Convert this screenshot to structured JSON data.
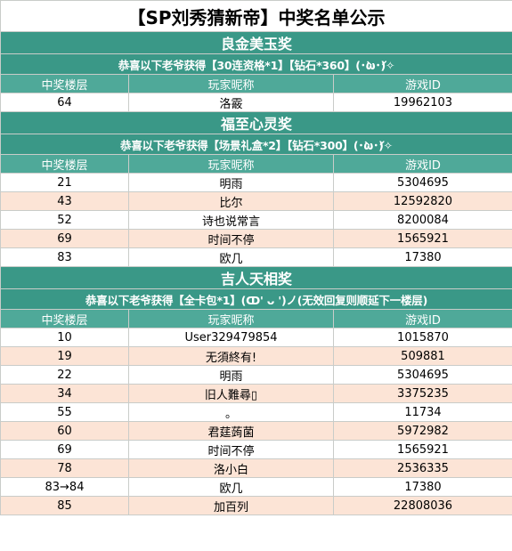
{
  "title": "【SP刘秀猜新帝】中奖名单公示",
  "sections": [
    {
      "name": "良金美玉奖",
      "subtitle": "恭喜以下老爷获得【30连资格*1】【钻石*360】(･̀ω･́)✧",
      "headers": [
        "中奖楼层",
        "玩家昵称",
        "游戏ID"
      ],
      "rows": [
        [
          "64",
          "洛霰",
          "19962103"
        ]
      ]
    },
    {
      "name": "福至心灵奖",
      "subtitle": "恭喜以下老爷获得【场景礼盒*2】【钻石*300】(･̀ω･́)✧",
      "headers": [
        "中奖楼层",
        "玩家昵称",
        "游戏ID"
      ],
      "rows": [
        [
          "21",
          "明雨",
          "5304695"
        ],
        [
          "43",
          "比尔",
          "12592820"
        ],
        [
          "52",
          "诗也说常言",
          "8200084"
        ],
        [
          "69",
          "时间不停",
          "1565921"
        ],
        [
          "83",
          "欧几",
          "17380"
        ]
      ]
    },
    {
      "name": "吉人天相奖",
      "subtitle": "恭喜以下老爷获得【全卡包*1】(ↀ' ᴗ ')ノ(无效回复则顺延下一楼层)",
      "headers": [
        "中奖楼层",
        "玩家昵称",
        "游戏ID"
      ],
      "rows": [
        [
          "10",
          "User329479854",
          "1015870"
        ],
        [
          "19",
          "无須終有!",
          "509881"
        ],
        [
          "22",
          "明雨",
          "5304695"
        ],
        [
          "34",
          "旧人難尋▯",
          "3375235"
        ],
        [
          "55",
          "。",
          "11734"
        ],
        [
          "60",
          "君莛蒟菌",
          "5972982"
        ],
        [
          "69",
          "时间不停",
          "1565921"
        ],
        [
          "78",
          "洛小白",
          "2536335"
        ],
        [
          "83→84",
          "欧几",
          "17380"
        ],
        [
          "85",
          "加百列",
          "22808036"
        ]
      ]
    }
  ],
  "colors": {
    "section_bg": "#3a9887",
    "header_bg": "#4fa999",
    "stripe_bg": "#fce4d6"
  }
}
